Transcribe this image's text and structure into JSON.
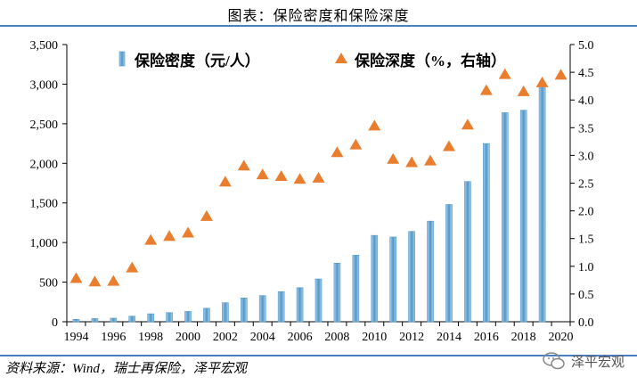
{
  "header": {
    "title": "图表：保险密度和保险深度"
  },
  "footer": {
    "source": "资料来源：Wind，瑞士再保险，泽平宏观",
    "watermark": "泽平宏观",
    "watermark_icon": "wechat-icon"
  },
  "colors": {
    "bar": "#4f97c9",
    "bar_light": "#a9d0eb",
    "marker": "#ea7e2f",
    "rule": "#4a7fc0"
  },
  "chart_data": {
    "type": "bar+scatter",
    "title": "图表：保险密度和保险深度",
    "x": [
      1994,
      1995,
      1996,
      1997,
      1998,
      1999,
      2000,
      2001,
      2002,
      2003,
      2004,
      2005,
      2006,
      2007,
      2008,
      2009,
      2010,
      2011,
      2012,
      2013,
      2014,
      2015,
      2016,
      2017,
      2018,
      2019,
      2020
    ],
    "x_tick_labels": [
      "1994",
      "1996",
      "1998",
      "2000",
      "2002",
      "2004",
      "2006",
      "2008",
      "2010",
      "2012",
      "2014",
      "2016",
      "2018",
      "2020"
    ],
    "left_axis": {
      "ylim": [
        0,
        3500
      ],
      "ticks": [
        "0",
        "500",
        "1,000",
        "1,500",
        "2,000",
        "2,500",
        "3,000",
        "3,500"
      ]
    },
    "right_axis": {
      "ylim": [
        0,
        5.0
      ],
      "ticks": [
        "0.0",
        "0.5",
        "1.0",
        "1.5",
        "2.0",
        "2.5",
        "3.0",
        "3.5",
        "4.0",
        "4.5",
        "5.0"
      ]
    },
    "series": [
      {
        "name": "保险密度（元/人）",
        "type": "bar",
        "axis": "left",
        "values": [
          30,
          40,
          45,
          70,
          100,
          115,
          130,
          170,
          240,
          300,
          330,
          380,
          430,
          540,
          740,
          840,
          1090,
          1070,
          1140,
          1270,
          1480,
          1770,
          2250,
          2640,
          2670,
          3010,
          null
        ]
      },
      {
        "name": "保险深度（%，右轴）",
        "type": "scatter",
        "axis": "right",
        "marker": "triangle",
        "values": [
          0.78,
          0.72,
          0.73,
          0.97,
          1.47,
          1.54,
          1.6,
          1.9,
          2.52,
          2.81,
          2.65,
          2.62,
          2.57,
          2.59,
          3.05,
          3.19,
          3.53,
          2.93,
          2.87,
          2.9,
          3.16,
          3.55,
          4.17,
          4.46,
          4.15,
          4.31,
          4.45
        ]
      }
    ]
  }
}
